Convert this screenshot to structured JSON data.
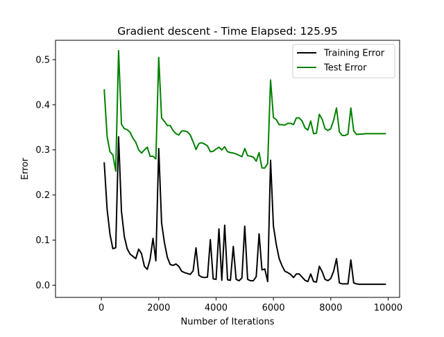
{
  "chart_data": {
    "type": "line",
    "title": "Gradient descent - Time Elapsed: 125.95",
    "xlabel": "Number of Iterations",
    "ylabel": "Error",
    "xlim": [
      -1600,
      10400
    ],
    "ylim": [
      -0.027,
      0.543
    ],
    "xticks": [
      {
        "value": 0,
        "label": "0"
      },
      {
        "value": 2000,
        "label": "2000"
      },
      {
        "value": 4000,
        "label": "4000"
      },
      {
        "value": 6000,
        "label": "6000"
      },
      {
        "value": 8000,
        "label": "8000"
      },
      {
        "value": 10000,
        "label": "10000"
      }
    ],
    "yticks": [
      {
        "value": 0.0,
        "label": "0.0"
      },
      {
        "value": 0.1,
        "label": "0.1"
      },
      {
        "value": 0.2,
        "label": "0.2"
      },
      {
        "value": 0.3,
        "label": "0.3"
      },
      {
        "value": 0.4,
        "label": "0.4"
      },
      {
        "value": 0.5,
        "label": "0.5"
      }
    ],
    "grid": false,
    "legend_position": "top-right",
    "series": [
      {
        "name": "Training Error",
        "color": "#000000",
        "x": [
          100,
          200,
          300,
          400,
          500,
          600,
          700,
          800,
          900,
          1000,
          1100,
          1200,
          1300,
          1400,
          1500,
          1600,
          1700,
          1800,
          1900,
          2000,
          2100,
          2200,
          2300,
          2400,
          2500,
          2600,
          2700,
          2800,
          2900,
          3000,
          3100,
          3200,
          3300,
          3400,
          3500,
          3600,
          3700,
          3800,
          3900,
          4000,
          4100,
          4200,
          4300,
          4400,
          4500,
          4600,
          4700,
          4800,
          4900,
          5000,
          5100,
          5200,
          5300,
          5400,
          5500,
          5600,
          5700,
          5800,
          5900,
          6000,
          6100,
          6200,
          6300,
          6400,
          6500,
          6600,
          6700,
          6800,
          6900,
          7000,
          7100,
          7200,
          7300,
          7400,
          7500,
          7600,
          7700,
          7800,
          7900,
          8000,
          8100,
          8200,
          8300,
          8400,
          8500,
          8600,
          8700,
          8800,
          8900,
          9000,
          9100,
          9200,
          9300,
          9400,
          9500,
          9600,
          9700,
          9800,
          9900
        ],
        "values": [
          0.271,
          0.168,
          0.113,
          0.081,
          0.083,
          0.329,
          0.164,
          0.108,
          0.081,
          0.069,
          0.064,
          0.059,
          0.08,
          0.07,
          0.042,
          0.035,
          0.058,
          0.104,
          0.054,
          0.303,
          0.138,
          0.094,
          0.062,
          0.046,
          0.044,
          0.047,
          0.042,
          0.031,
          0.028,
          0.026,
          0.024,
          0.032,
          0.083,
          0.022,
          0.018,
          0.017,
          0.018,
          0.101,
          0.014,
          0.013,
          0.125,
          0.011,
          0.133,
          0.012,
          0.011,
          0.086,
          0.013,
          0.01,
          0.016,
          0.131,
          0.013,
          0.01,
          0.01,
          0.019,
          0.114,
          0.034,
          0.036,
          0.008,
          0.277,
          0.131,
          0.09,
          0.059,
          0.043,
          0.031,
          0.028,
          0.024,
          0.017,
          0.025,
          0.025,
          0.018,
          0.011,
          0.008,
          0.025,
          0.008,
          0.007,
          0.042,
          0.03,
          0.013,
          0.01,
          0.015,
          0.031,
          0.059,
          0.005,
          0.003,
          0.003,
          0.003,
          0.056,
          0.005,
          0.003,
          0.002,
          0.002,
          0.002,
          0.002,
          0.002,
          0.002,
          0.002,
          0.002,
          0.002,
          0.002
        ]
      },
      {
        "name": "Test Error",
        "color": "#008000",
        "x": [
          100,
          200,
          300,
          400,
          500,
          600,
          700,
          800,
          900,
          1000,
          1100,
          1200,
          1300,
          1400,
          1500,
          1600,
          1700,
          1800,
          1900,
          2000,
          2100,
          2200,
          2300,
          2400,
          2500,
          2600,
          2700,
          2800,
          2900,
          3000,
          3100,
          3200,
          3300,
          3400,
          3500,
          3600,
          3700,
          3800,
          3900,
          4000,
          4100,
          4200,
          4300,
          4400,
          4500,
          4600,
          4700,
          4800,
          4900,
          5000,
          5100,
          5200,
          5300,
          5400,
          5500,
          5600,
          5700,
          5800,
          5900,
          6000,
          6100,
          6200,
          6300,
          6400,
          6500,
          6600,
          6700,
          6800,
          6900,
          7000,
          7100,
          7200,
          7300,
          7400,
          7500,
          7600,
          7700,
          7800,
          7900,
          8000,
          8100,
          8200,
          8300,
          8400,
          8500,
          8600,
          8700,
          8800,
          8900,
          9000,
          9100,
          9200,
          9300,
          9400,
          9500,
          9600,
          9700,
          9800,
          9900
        ],
        "values": [
          0.433,
          0.33,
          0.296,
          0.289,
          0.253,
          0.52,
          0.357,
          0.347,
          0.345,
          0.339,
          0.326,
          0.317,
          0.3,
          0.293,
          0.3,
          0.306,
          0.286,
          0.286,
          0.28,
          0.505,
          0.371,
          0.363,
          0.354,
          0.354,
          0.343,
          0.336,
          0.333,
          0.342,
          0.342,
          0.34,
          0.333,
          0.318,
          0.301,
          0.314,
          0.316,
          0.313,
          0.309,
          0.296,
          0.297,
          0.302,
          0.306,
          0.3,
          0.307,
          0.296,
          0.294,
          0.293,
          0.291,
          0.288,
          0.285,
          0.303,
          0.287,
          0.286,
          0.284,
          0.275,
          0.294,
          0.26,
          0.26,
          0.27,
          0.455,
          0.372,
          0.367,
          0.356,
          0.356,
          0.355,
          0.359,
          0.359,
          0.356,
          0.371,
          0.371,
          0.364,
          0.349,
          0.344,
          0.364,
          0.336,
          0.337,
          0.379,
          0.368,
          0.347,
          0.343,
          0.347,
          0.366,
          0.393,
          0.34,
          0.332,
          0.332,
          0.335,
          0.393,
          0.342,
          0.334,
          0.335,
          0.335,
          0.336,
          0.336,
          0.336,
          0.336,
          0.336,
          0.336,
          0.336,
          0.336
        ]
      }
    ]
  }
}
